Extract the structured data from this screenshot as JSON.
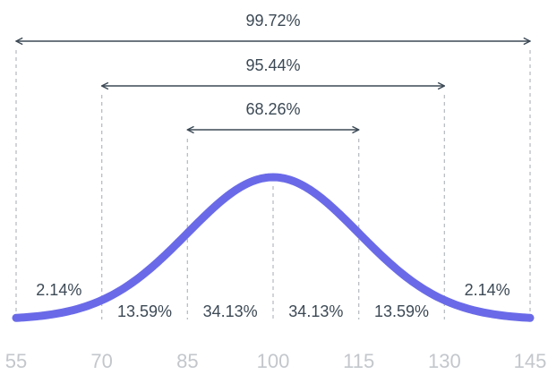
{
  "chart_data": {
    "type": "bell",
    "xlim": [
      55,
      145
    ],
    "xticks": [
      55,
      70,
      85,
      100,
      115,
      130,
      145
    ],
    "segments": {
      "values": [
        2.14,
        13.59,
        34.13,
        34.13,
        13.59,
        2.14
      ],
      "value_labels": [
        "2.14%",
        "13.59%",
        "34.13%",
        "34.13%",
        "13.59%",
        "2.14%"
      ]
    },
    "spans": [
      {
        "from": 55,
        "to": 145,
        "value": 99.72,
        "label": "99.72%"
      },
      {
        "from": 70,
        "to": 130,
        "value": 95.44,
        "label": "95.44%"
      },
      {
        "from": 85,
        "to": 115,
        "value": 68.26,
        "label": "68.26%"
      }
    ],
    "color": "#6a6ae8"
  }
}
